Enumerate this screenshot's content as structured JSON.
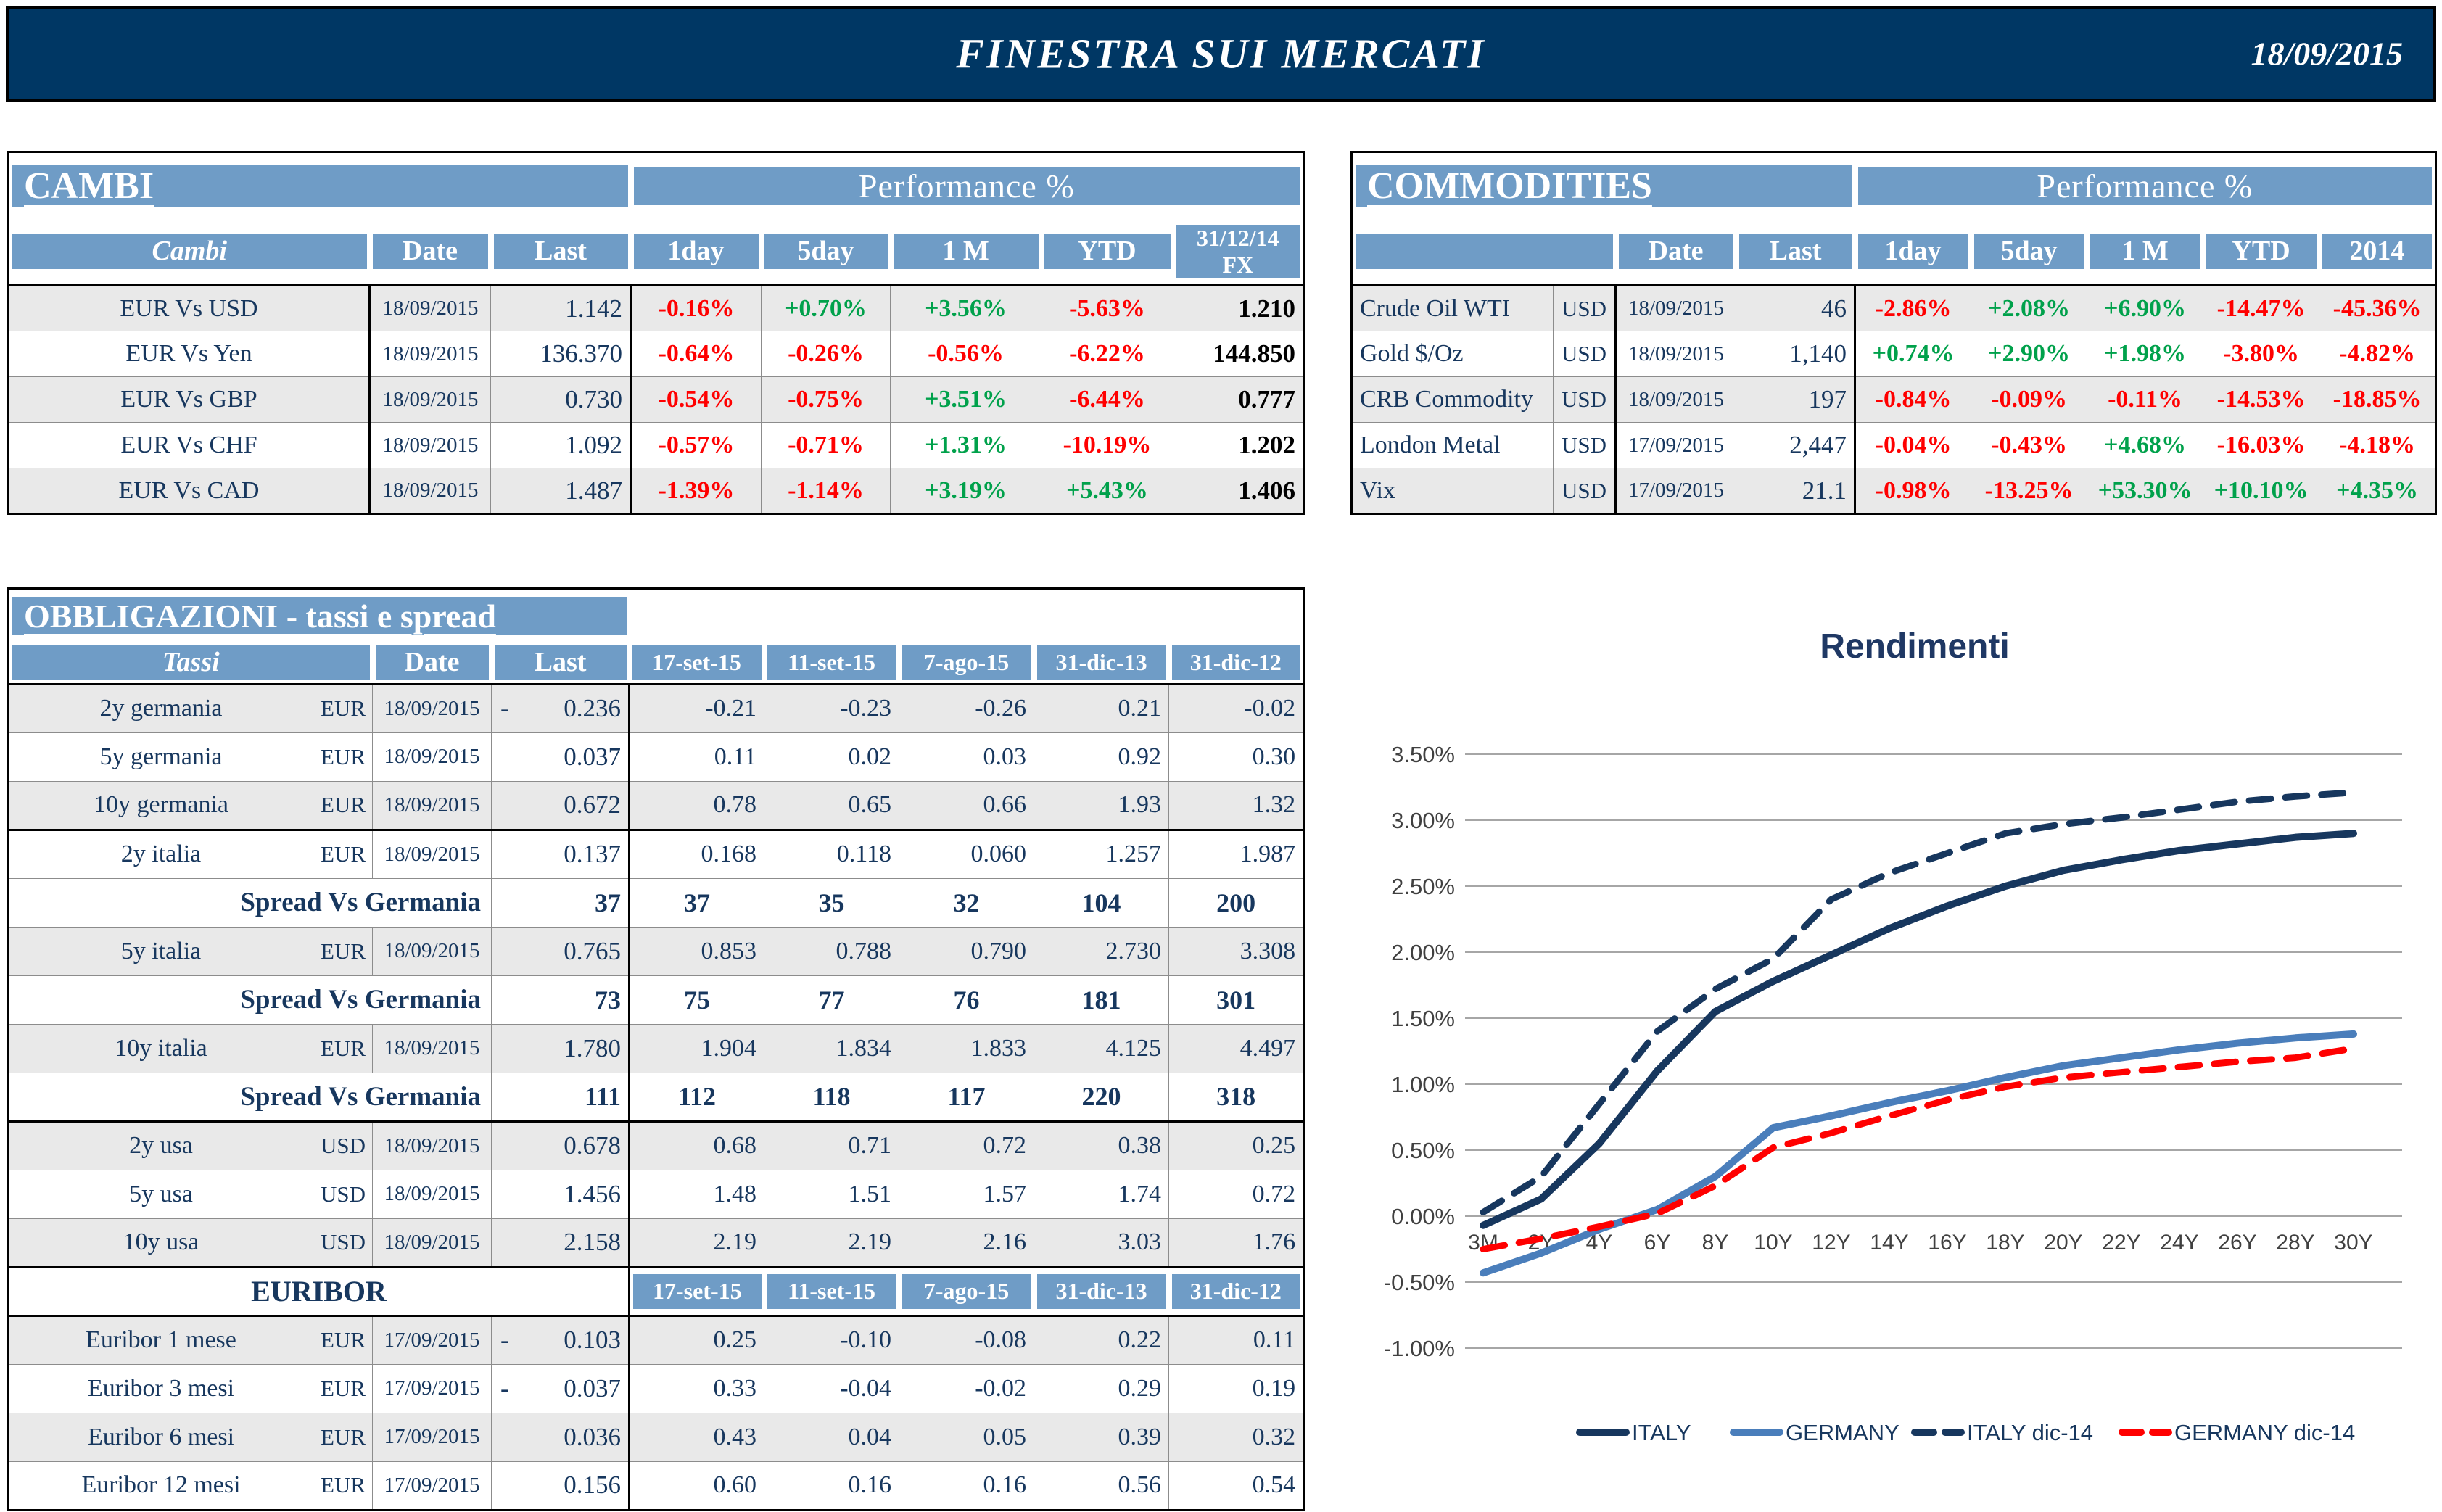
{
  "header": {
    "title": "FINESTRA SUI MERCATI",
    "date": "18/09/2015"
  },
  "colors": {
    "topbar": "#003764",
    "header_blue": "#6F9CC6",
    "text_navy": "#17375E",
    "row_gray": "#E9E9E9",
    "positive": "#00A14B",
    "negative": "#FF0000",
    "italy_line": "#17375E",
    "germany_line": "#4A7EBB",
    "germany_dic14_line": "#FF0000"
  },
  "cambi": {
    "title": "CAMBI",
    "perf_header": "Performance  %",
    "columns": [
      "Cambi",
      "Date",
      "Last",
      "1day",
      "5day",
      "1 M",
      "YTD",
      "31/12/14\nFX"
    ],
    "rows": [
      {
        "name": "EUR Vs USD",
        "date": "18/09/2015",
        "last": "1.142",
        "perf": [
          {
            "v": "-0.16%",
            "c": "neg"
          },
          {
            "v": "+0.70%",
            "c": "pos"
          },
          {
            "v": "+3.56%",
            "c": "pos"
          },
          {
            "v": "-5.63%",
            "c": "neg"
          }
        ],
        "fx": "1.210"
      },
      {
        "name": "EUR Vs Yen",
        "date": "18/09/2015",
        "last": "136.370",
        "perf": [
          {
            "v": "-0.64%",
            "c": "neg"
          },
          {
            "v": "-0.26%",
            "c": "neg"
          },
          {
            "v": "-0.56%",
            "c": "neg"
          },
          {
            "v": "-6.22%",
            "c": "neg"
          }
        ],
        "fx": "144.850"
      },
      {
        "name": "EUR Vs GBP",
        "date": "18/09/2015",
        "last": "0.730",
        "perf": [
          {
            "v": "-0.54%",
            "c": "neg"
          },
          {
            "v": "-0.75%",
            "c": "neg"
          },
          {
            "v": "+3.51%",
            "c": "pos"
          },
          {
            "v": "-6.44%",
            "c": "neg"
          }
        ],
        "fx": "0.777"
      },
      {
        "name": "EUR Vs CHF",
        "date": "18/09/2015",
        "last": "1.092",
        "perf": [
          {
            "v": "-0.57%",
            "c": "neg"
          },
          {
            "v": "-0.71%",
            "c": "neg"
          },
          {
            "v": "+1.31%",
            "c": "pos"
          },
          {
            "v": "-10.19%",
            "c": "neg"
          }
        ],
        "fx": "1.202"
      },
      {
        "name": "EUR Vs CAD",
        "date": "18/09/2015",
        "last": "1.487",
        "perf": [
          {
            "v": "-1.39%",
            "c": "neg"
          },
          {
            "v": "-1.14%",
            "c": "neg"
          },
          {
            "v": "+3.19%",
            "c": "pos"
          },
          {
            "v": "+5.43%",
            "c": "pos"
          }
        ],
        "fx": "1.406"
      }
    ]
  },
  "commodities": {
    "title": "COMMODITIES",
    "perf_header": "Performance  %",
    "columns": [
      "",
      "Date",
      "Last",
      "1day",
      "5day",
      "1 M",
      "YTD",
      "2014"
    ],
    "rows": [
      {
        "name": "Crude Oil WTI",
        "ccy": "USD",
        "date": "18/09/2015",
        "last": "46",
        "perf": [
          {
            "v": "-2.86%",
            "c": "neg"
          },
          {
            "v": "+2.08%",
            "c": "pos"
          },
          {
            "v": "+6.90%",
            "c": "pos"
          },
          {
            "v": "-14.47%",
            "c": "neg"
          },
          {
            "v": "-45.36%",
            "c": "neg"
          }
        ]
      },
      {
        "name": "Gold $/Oz",
        "ccy": "USD",
        "date": "18/09/2015",
        "last": "1,140",
        "perf": [
          {
            "v": "+0.74%",
            "c": "pos"
          },
          {
            "v": "+2.90%",
            "c": "pos"
          },
          {
            "v": "+1.98%",
            "c": "pos"
          },
          {
            "v": "-3.80%",
            "c": "neg"
          },
          {
            "v": "-4.82%",
            "c": "neg"
          }
        ]
      },
      {
        "name": "CRB Commodity",
        "ccy": "USD",
        "date": "18/09/2015",
        "last": "197",
        "perf": [
          {
            "v": "-0.84%",
            "c": "neg"
          },
          {
            "v": "-0.09%",
            "c": "neg"
          },
          {
            "v": "-0.11%",
            "c": "neg"
          },
          {
            "v": "-14.53%",
            "c": "neg"
          },
          {
            "v": "-18.85%",
            "c": "neg"
          }
        ]
      },
      {
        "name": "London Metal",
        "ccy": "USD",
        "date": "17/09/2015",
        "last": "2,447",
        "perf": [
          {
            "v": "-0.04%",
            "c": "neg"
          },
          {
            "v": "-0.43%",
            "c": "neg"
          },
          {
            "v": "+4.68%",
            "c": "pos"
          },
          {
            "v": "-16.03%",
            "c": "neg"
          },
          {
            "v": "-4.18%",
            "c": "neg"
          }
        ]
      },
      {
        "name": "Vix",
        "ccy": "USD",
        "date": "17/09/2015",
        "last": "21.1",
        "perf": [
          {
            "v": "-0.98%",
            "c": "neg"
          },
          {
            "v": "-13.25%",
            "c": "neg"
          },
          {
            "v": "+53.30%",
            "c": "pos"
          },
          {
            "v": "+10.10%",
            "c": "pos"
          },
          {
            "v": "+4.35%",
            "c": "pos"
          }
        ]
      }
    ]
  },
  "obbligazioni": {
    "title": "OBBLIGAZIONI - tassi e spread",
    "columns": [
      "Tassi",
      "Date",
      "Last",
      "17-set-15",
      "11-set-15",
      "7-ago-15",
      "31-dic-13",
      "31-dic-12"
    ],
    "rows": [
      {
        "type": "data",
        "name": "2y germania",
        "ccy": "EUR",
        "date": "18/09/2015",
        "minus": true,
        "last": "0.236",
        "vals": [
          "-0.21",
          "-0.23",
          "-0.26",
          "0.21",
          "-0.02"
        ],
        "shade": true
      },
      {
        "type": "data",
        "name": "5y germania",
        "ccy": "EUR",
        "date": "18/09/2015",
        "minus": false,
        "last": "0.037",
        "vals": [
          "0.11",
          "0.02",
          "0.03",
          "0.92",
          "0.30"
        ],
        "shade": false
      },
      {
        "type": "data",
        "name": "10y germania",
        "ccy": "EUR",
        "date": "18/09/2015",
        "minus": false,
        "last": "0.672",
        "vals": [
          "0.78",
          "0.65",
          "0.66",
          "1.93",
          "1.32"
        ],
        "shade": true,
        "thick_bottom": true
      },
      {
        "type": "data",
        "name": "2y italia",
        "ccy": "EUR",
        "date": "18/09/2015",
        "minus": false,
        "last": "0.137",
        "vals": [
          "0.168",
          "0.118",
          "0.060",
          "1.257",
          "1.987"
        ],
        "shade": false
      },
      {
        "type": "spread",
        "label": "Spread Vs Germania",
        "last": "37",
        "vals": [
          "37",
          "35",
          "32",
          "104",
          "200"
        ]
      },
      {
        "type": "data",
        "name": "5y italia",
        "ccy": "EUR",
        "date": "18/09/2015",
        "minus": false,
        "last": "0.765",
        "vals": [
          "0.853",
          "0.788",
          "0.790",
          "2.730",
          "3.308"
        ],
        "shade": true
      },
      {
        "type": "spread",
        "label": "Spread Vs Germania",
        "last": "73",
        "vals": [
          "75",
          "77",
          "76",
          "181",
          "301"
        ]
      },
      {
        "type": "data",
        "name": "10y italia",
        "ccy": "EUR",
        "date": "18/09/2015",
        "minus": false,
        "last": "1.780",
        "vals": [
          "1.904",
          "1.834",
          "1.833",
          "4.125",
          "4.497"
        ],
        "shade": true
      },
      {
        "type": "spread",
        "label": "Spread Vs Germania",
        "last": "111",
        "vals": [
          "112",
          "118",
          "117",
          "220",
          "318"
        ],
        "thick_bottom": true
      },
      {
        "type": "data",
        "name": "2y usa",
        "ccy": "USD",
        "date": "18/09/2015",
        "minus": false,
        "last": "0.678",
        "vals": [
          "0.68",
          "0.71",
          "0.72",
          "0.38",
          "0.25"
        ],
        "shade": true
      },
      {
        "type": "data",
        "name": "5y usa",
        "ccy": "USD",
        "date": "18/09/2015",
        "minus": false,
        "last": "1.456",
        "vals": [
          "1.48",
          "1.51",
          "1.57",
          "1.74",
          "0.72"
        ],
        "shade": false
      },
      {
        "type": "data",
        "name": "10y usa",
        "ccy": "USD",
        "date": "18/09/2015",
        "minus": false,
        "last": "2.158",
        "vals": [
          "2.19",
          "2.19",
          "2.16",
          "3.03",
          "1.76"
        ],
        "shade": true,
        "thick_bottom": true
      },
      {
        "type": "subheader",
        "label": "EURIBOR",
        "heads": [
          "17-set-15",
          "11-set-15",
          "7-ago-15",
          "31-dic-13",
          "31-dic-12"
        ]
      },
      {
        "type": "data",
        "name": "Euribor 1 mese",
        "ccy": "EUR",
        "date": "17/09/2015",
        "minus": true,
        "last": "0.103",
        "vals": [
          "0.25",
          "-0.10",
          "-0.08",
          "0.22",
          "0.11"
        ],
        "shade": true,
        "thick_top": true
      },
      {
        "type": "data",
        "name": "Euribor 3 mesi",
        "ccy": "EUR",
        "date": "17/09/2015",
        "minus": true,
        "last": "0.037",
        "vals": [
          "0.33",
          "-0.04",
          "-0.02",
          "0.29",
          "0.19"
        ],
        "shade": false
      },
      {
        "type": "data",
        "name": "Euribor 6 mesi",
        "ccy": "EUR",
        "date": "17/09/2015",
        "minus": false,
        "last": "0.036",
        "vals": [
          "0.43",
          "0.04",
          "0.05",
          "0.39",
          "0.32"
        ],
        "shade": true
      },
      {
        "type": "data",
        "name": "Euribor 12 mesi",
        "ccy": "EUR",
        "date": "17/09/2015",
        "minus": false,
        "last": "0.156",
        "vals": [
          "0.60",
          "0.16",
          "0.16",
          "0.56",
          "0.54"
        ],
        "shade": false
      }
    ]
  },
  "chart_data": {
    "type": "line",
    "title": "Rendimenti",
    "x_labels": [
      "3M",
      "2Y",
      "4Y",
      "6Y",
      "8Y",
      "10Y",
      "12Y",
      "14Y",
      "16Y",
      "18Y",
      "20Y",
      "22Y",
      "24Y",
      "26Y",
      "28Y",
      "30Y"
    ],
    "ylim": [
      -1.0,
      3.5
    ],
    "ytick_step": 0.5,
    "ytick_labels": [
      "3.50%",
      "3.00%",
      "2.50%",
      "2.00%",
      "1.50%",
      "1.00%",
      "0.50%",
      "0.00%",
      "-0.50%",
      "-1.00%"
    ],
    "grid": true,
    "legend_position": "bottom",
    "series": [
      {
        "name": "ITALY",
        "color": "#17375E",
        "style": "solid",
        "values": [
          -0.07,
          0.13,
          0.55,
          1.1,
          1.55,
          1.78,
          1.98,
          2.18,
          2.35,
          2.5,
          2.62,
          2.7,
          2.77,
          2.82,
          2.87,
          2.9
        ]
      },
      {
        "name": "GERMANY",
        "color": "#4A7EBB",
        "style": "solid",
        "values": [
          -0.43,
          -0.28,
          -0.1,
          0.05,
          0.3,
          0.67,
          0.76,
          0.86,
          0.95,
          1.05,
          1.14,
          1.2,
          1.26,
          1.31,
          1.35,
          1.38
        ]
      },
      {
        "name": "ITALY dic-14",
        "color": "#17375E",
        "style": "dashed",
        "values": [
          0.03,
          0.3,
          0.85,
          1.4,
          1.72,
          1.95,
          2.4,
          2.6,
          2.75,
          2.9,
          2.97,
          3.02,
          3.08,
          3.14,
          3.18,
          3.21
        ]
      },
      {
        "name": "GERMANY dic-14",
        "color": "#FF0000",
        "style": "dashed",
        "values": [
          -0.25,
          -0.17,
          -0.08,
          0.02,
          0.23,
          0.52,
          0.63,
          0.76,
          0.88,
          0.98,
          1.05,
          1.09,
          1.13,
          1.17,
          1.2,
          1.27
        ]
      }
    ]
  }
}
